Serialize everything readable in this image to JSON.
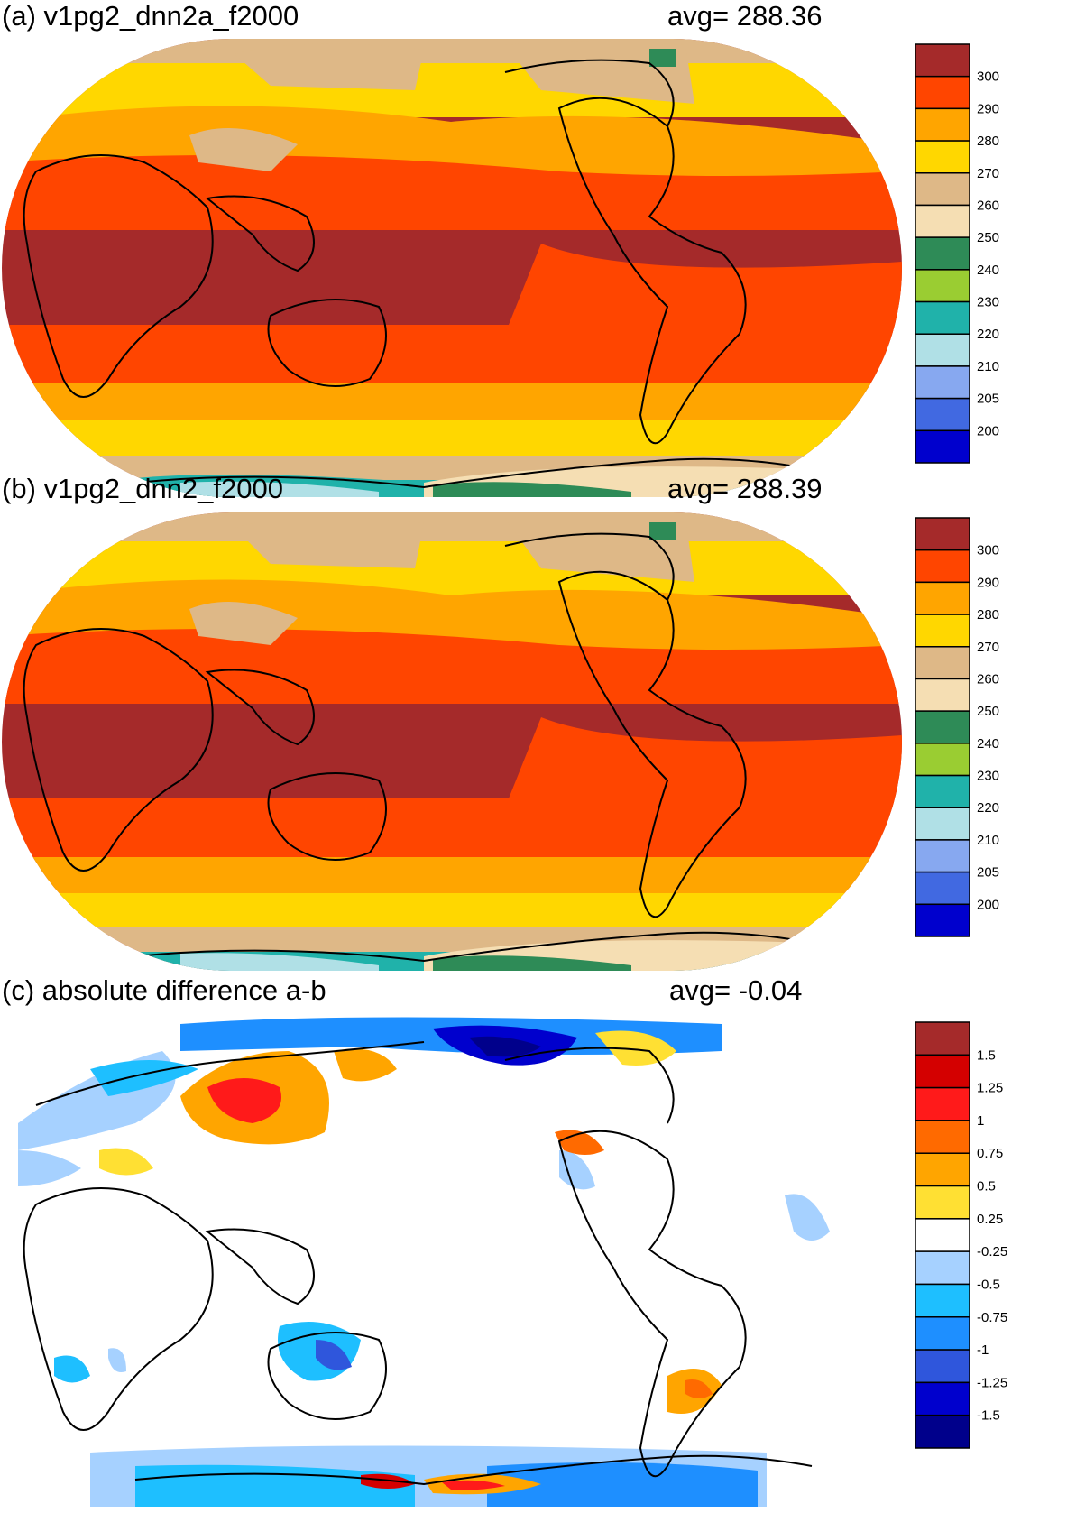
{
  "panels": [
    {
      "title": "(a) v1pg2_dnn2a_f2000",
      "avg_label": "avg=",
      "avg_value": "288.36",
      "colorbar": {
        "labels": [
          "300",
          "290",
          "280",
          "270",
          "260",
          "250",
          "240",
          "230",
          "220",
          "210",
          "205",
          "200"
        ],
        "colors": [
          "#a52a2a",
          "#ff4500",
          "#ffa500",
          "#ffd700",
          "#deb887",
          "#f5deb3",
          "#2e8b57",
          "#9acd32",
          "#20b2aa",
          "#b0e0e6",
          "#87a8f0",
          "#4169e1",
          "#0000cd"
        ]
      }
    },
    {
      "title": "(b) v1pg2_dnn2_f2000",
      "avg_label": "avg=",
      "avg_value": "288.39",
      "colorbar": {
        "labels": [
          "300",
          "290",
          "280",
          "270",
          "260",
          "250",
          "240",
          "230",
          "220",
          "210",
          "205",
          "200"
        ],
        "colors": [
          "#a52a2a",
          "#ff4500",
          "#ffa500",
          "#ffd700",
          "#deb887",
          "#f5deb3",
          "#2e8b57",
          "#9acd32",
          "#20b2aa",
          "#b0e0e6",
          "#87a8f0",
          "#4169e1",
          "#0000cd"
        ]
      }
    },
    {
      "title": "(c) absolute difference a-b",
      "avg_label": "avg=",
      "avg_value": "-0.04",
      "colorbar": {
        "labels": [
          "1.5",
          "1.25",
          "1",
          "0.75",
          "0.5",
          "0.25",
          "-0.25",
          "-0.5",
          "-0.75",
          "-1",
          "-1.25",
          "-1.5"
        ],
        "colors": [
          "#a52a2a",
          "#d40000",
          "#ff1a1a",
          "#ff6a00",
          "#ffa500",
          "#ffe033",
          "#ffffff",
          "#a6d1ff",
          "#1ebfff",
          "#1e8fff",
          "#2f56dc",
          "#0000cd",
          "#00008b"
        ]
      }
    }
  ]
}
